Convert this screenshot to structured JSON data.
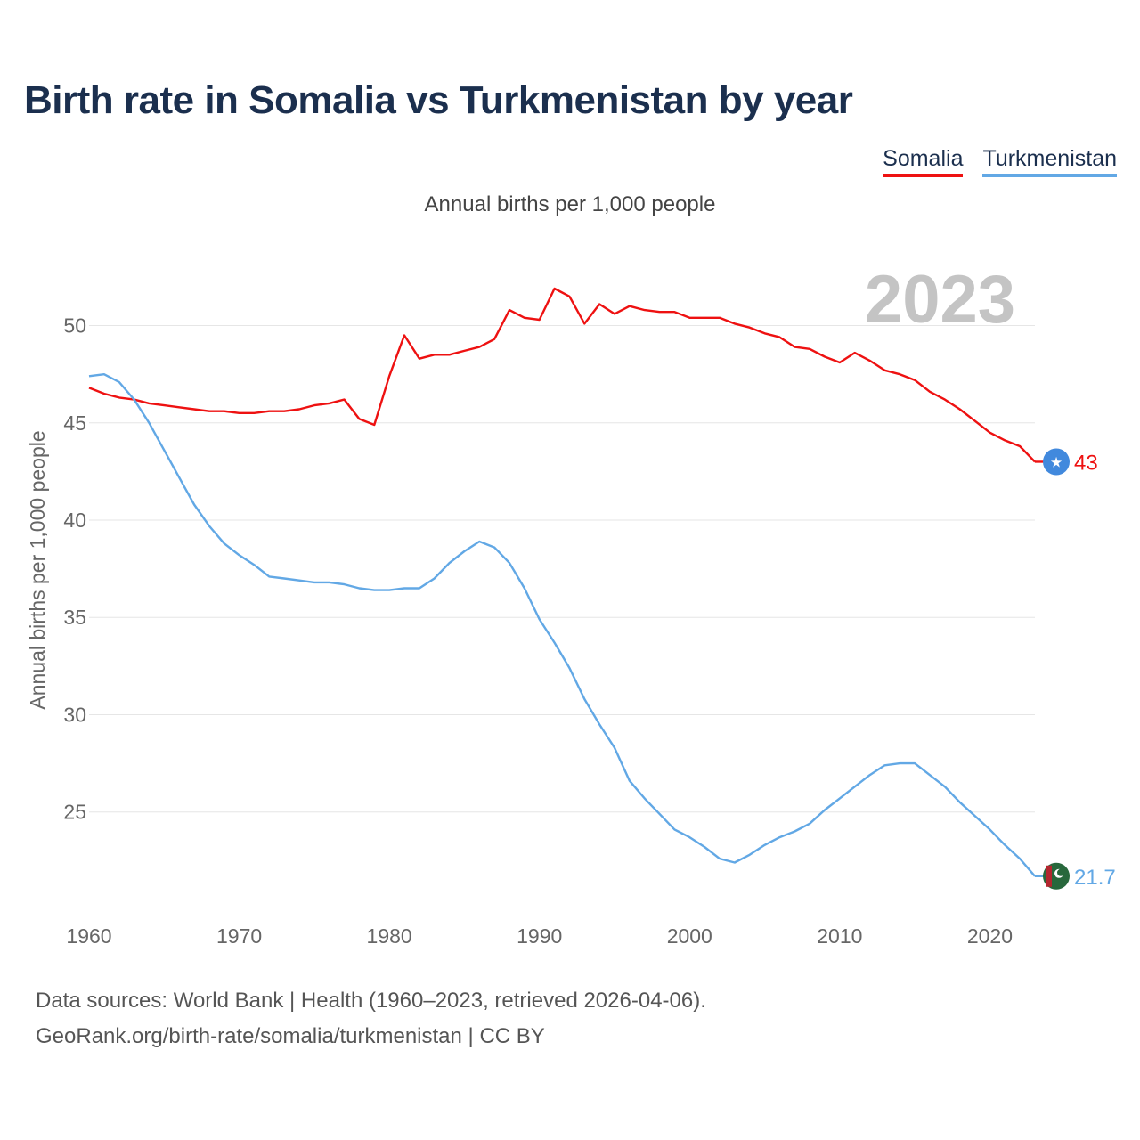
{
  "title": "Birth rate in Somalia vs Turkmenistan by year",
  "subtitle": "Annual births per 1,000 people",
  "legend": [
    {
      "label": "Somalia",
      "color": "#ee1111"
    },
    {
      "label": "Turkmenistan",
      "color": "#62a8e5"
    }
  ],
  "footer": {
    "line1": "Data sources: World Bank | Health (1960–2023, retrieved 2026-04-06).",
    "line2": "GeoRank.org/birth-rate/somalia/turkmenistan | CC BY"
  },
  "chart_data": {
    "type": "line",
    "title": "Birth rate in Somalia vs Turkmenistan by year",
    "xlabel": "",
    "ylabel": "Annual births per 1,000 people",
    "year_watermark": "2023",
    "xlim": [
      1960,
      2023
    ],
    "ylim": [
      20.5,
      53
    ],
    "x_ticks": [
      1960,
      1970,
      1980,
      1990,
      2000,
      2010,
      2020
    ],
    "y_ticks": [
      25,
      30,
      35,
      40,
      45,
      50
    ],
    "grid": true,
    "x": [
      1960,
      1961,
      1962,
      1963,
      1964,
      1965,
      1966,
      1967,
      1968,
      1969,
      1970,
      1971,
      1972,
      1973,
      1974,
      1975,
      1976,
      1977,
      1978,
      1979,
      1980,
      1981,
      1982,
      1983,
      1984,
      1985,
      1986,
      1987,
      1988,
      1989,
      1990,
      1991,
      1992,
      1993,
      1994,
      1995,
      1996,
      1997,
      1998,
      1999,
      2000,
      2001,
      2002,
      2003,
      2004,
      2005,
      2006,
      2007,
      2008,
      2009,
      2010,
      2011,
      2012,
      2013,
      2014,
      2015,
      2016,
      2017,
      2018,
      2019,
      2020,
      2021,
      2022,
      2023
    ],
    "series": [
      {
        "name": "Somalia",
        "color": "#ee1111",
        "end_label": "43",
        "values": [
          46.8,
          46.5,
          46.3,
          46.2,
          46.0,
          45.9,
          45.8,
          45.7,
          45.6,
          45.6,
          45.5,
          45.5,
          45.6,
          45.6,
          45.7,
          45.9,
          46.0,
          46.2,
          45.2,
          44.9,
          47.4,
          49.5,
          48.3,
          48.5,
          48.5,
          48.7,
          48.9,
          49.3,
          50.8,
          50.4,
          50.3,
          51.9,
          51.5,
          50.1,
          51.1,
          50.6,
          51.0,
          50.8,
          50.7,
          50.7,
          50.4,
          50.4,
          50.4,
          50.1,
          49.9,
          49.6,
          49.4,
          48.9,
          48.8,
          48.4,
          48.1,
          48.6,
          48.2,
          47.7,
          47.5,
          47.2,
          46.6,
          46.2,
          45.7,
          45.1,
          44.5,
          44.1,
          43.8,
          43.0
        ]
      },
      {
        "name": "Turkmenistan",
        "color": "#62a8e5",
        "end_label": "21.7",
        "values": [
          47.4,
          47.5,
          47.1,
          46.2,
          45.0,
          43.6,
          42.2,
          40.8,
          39.7,
          38.8,
          38.2,
          37.7,
          37.1,
          37.0,
          36.9,
          36.8,
          36.8,
          36.7,
          36.5,
          36.4,
          36.4,
          36.5,
          36.5,
          37.0,
          37.8,
          38.4,
          38.9,
          38.6,
          37.8,
          36.5,
          34.9,
          33.7,
          32.4,
          30.8,
          29.5,
          28.3,
          26.6,
          25.7,
          24.9,
          24.1,
          23.7,
          23.2,
          22.6,
          22.4,
          22.8,
          23.3,
          23.7,
          24.0,
          24.4,
          25.1,
          25.7,
          26.3,
          26.9,
          27.4,
          27.5,
          27.5,
          26.9,
          26.3,
          25.5,
          24.8,
          24.1,
          23.3,
          22.6,
          21.7
        ]
      }
    ]
  }
}
